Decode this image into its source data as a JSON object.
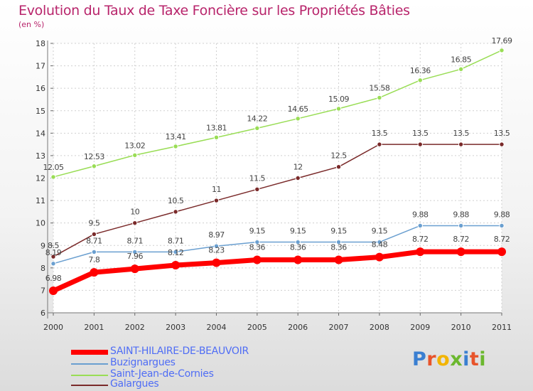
{
  "header": {
    "title": "Evolution du Taux de Taxe Foncière sur les Propriétés Bâties",
    "unit": "(en %)"
  },
  "brand": {
    "text": "Proxiti",
    "colors": [
      "#3a7fd1",
      "#e8542b",
      "#f2b400",
      "#6bb82e",
      "#3a7fd1",
      "#e8542b",
      "#6bb82e"
    ]
  },
  "chart_data": {
    "type": "line",
    "x": [
      "2000",
      "2001",
      "2002",
      "2003",
      "2004",
      "2005",
      "2006",
      "2007",
      "2008",
      "2009",
      "2010",
      "2011"
    ],
    "ylim": [
      6,
      18
    ],
    "yticks": [
      6,
      7,
      8,
      9,
      10,
      11,
      12,
      13,
      14,
      15,
      16,
      17,
      18
    ],
    "grid": true,
    "legend": "bottom-left",
    "series": [
      {
        "name": "SAINT-HILAIRE-DE-BEAUVOIR",
        "color": "#ff0000",
        "values": [
          6.98,
          7.8,
          7.96,
          8.12,
          8.23,
          8.36,
          8.36,
          8.36,
          8.48,
          8.72,
          8.72,
          8.72
        ],
        "labels": [
          "6.98",
          "7.8",
          "7.96",
          "8.12",
          "8.23",
          "8.36",
          "8.36",
          "8.36",
          "8.48",
          "8.72",
          "8.72",
          "8.72"
        ]
      },
      {
        "name": "Buzignargues",
        "color": "#6a9fd0",
        "values": [
          8.19,
          8.71,
          8.71,
          8.71,
          8.97,
          9.15,
          9.15,
          9.15,
          9.15,
          9.88,
          9.88,
          9.88
        ],
        "labels": [
          "8.19",
          "8.71",
          "8.71",
          "8.71",
          "8.97",
          "9.15",
          "9.15",
          "9.15",
          "9.15",
          "9.88",
          "9.88",
          "9.88"
        ]
      },
      {
        "name": "Saint-Jean-de-Cornies",
        "color": "#99dd55",
        "values": [
          12.05,
          12.53,
          13.02,
          13.41,
          13.81,
          14.22,
          14.65,
          15.09,
          15.58,
          16.36,
          16.85,
          17.69
        ],
        "labels": [
          "12.05",
          "12.53",
          "13.02",
          "13.41",
          "13.81",
          "14.22",
          "14.65",
          "15.09",
          "15.58",
          "16.36",
          "16.85",
          "17.69"
        ]
      },
      {
        "name": "Galargues",
        "color": "#7a2a2a",
        "values": [
          8.5,
          9.5,
          10,
          10.5,
          11,
          11.5,
          12,
          12.5,
          13.5,
          13.5,
          13.5,
          13.5
        ],
        "labels": [
          "8.5",
          "9.5",
          "10",
          "10.5",
          "11",
          "11.5",
          "12",
          "12.5",
          "13.5",
          "13.5",
          "13.5",
          "13.5"
        ]
      }
    ]
  }
}
